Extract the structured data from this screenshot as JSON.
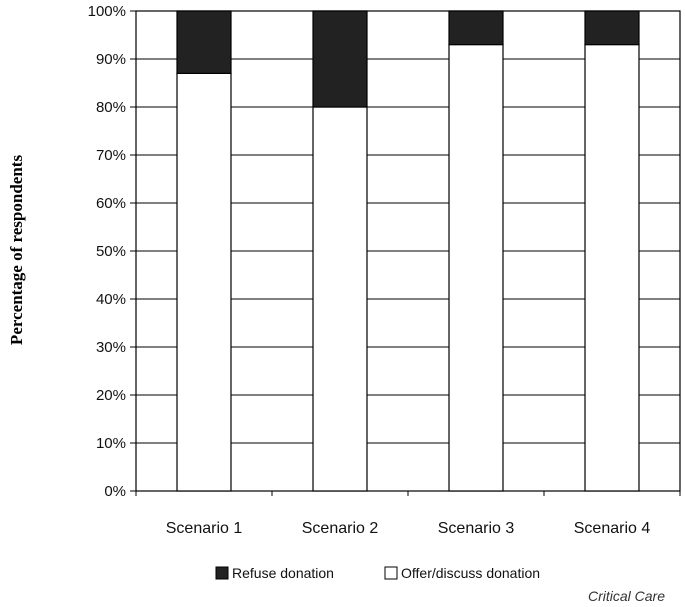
{
  "chart_data": {
    "type": "bar",
    "stacked": true,
    "title": "",
    "xlabel": "",
    "ylabel": "Percentage of respondents",
    "ylim": [
      0,
      100
    ],
    "yticks": [
      "0%",
      "10%",
      "20%",
      "30%",
      "40%",
      "50%",
      "60%",
      "70%",
      "80%",
      "90%",
      "100%"
    ],
    "categories": [
      "Scenario 1",
      "Scenario 2",
      "Scenario 3",
      "Scenario 4"
    ],
    "series": [
      {
        "name": "Offer/discuss donation",
        "values": [
          87,
          80,
          93,
          93
        ],
        "color": "#ffffff"
      },
      {
        "name": "Refuse donation",
        "values": [
          13,
          20,
          7,
          7
        ],
        "color": "#222222"
      }
    ],
    "grid": true,
    "legend_position": "bottom",
    "legend": [
      {
        "label": "Refuse donation",
        "color": "#222222"
      },
      {
        "label": "Offer/discuss donation",
        "color": "#ffffff"
      }
    ]
  },
  "source": "Critical Care"
}
